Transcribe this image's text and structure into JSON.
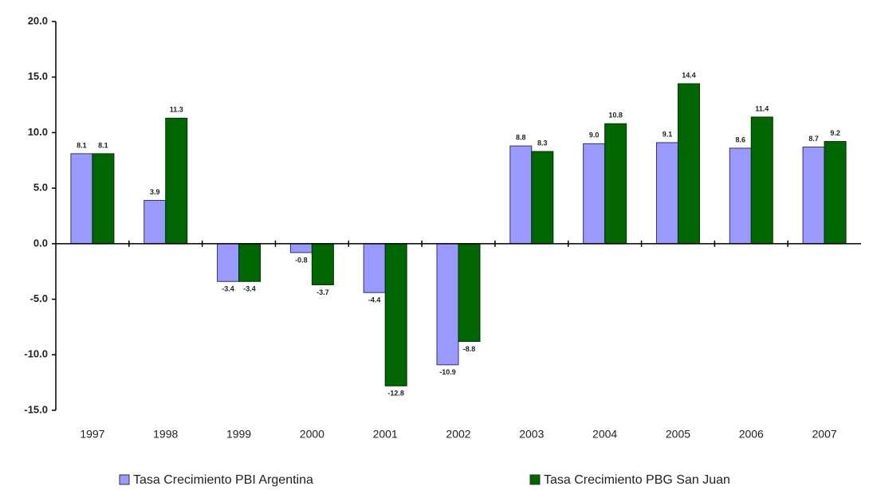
{
  "chart_data": {
    "type": "bar",
    "categories": [
      "1997",
      "1998",
      "1999",
      "2000",
      "2001",
      "2002",
      "2003",
      "2004",
      "2005",
      "2006",
      "2007"
    ],
    "series": [
      {
        "name": "Tasa Crecimiento PBI Argentina",
        "color": "#9999ff",
        "values": [
          8.1,
          3.9,
          -3.4,
          -0.8,
          -4.4,
          -10.9,
          8.8,
          9.0,
          9.1,
          8.6,
          8.7
        ],
        "value_labels": [
          "8.1",
          "3.9",
          "-3.4",
          "-0.8",
          "-4.4",
          "-10.9",
          "8.8",
          "9.0",
          "9.1",
          "8.6",
          "8.7"
        ]
      },
      {
        "name": "Tasa Crecimiento PBG San Juan",
        "color": "#006600",
        "values": [
          8.1,
          11.3,
          -3.4,
          -3.7,
          -12.8,
          -8.8,
          8.3,
          10.8,
          14.4,
          11.4,
          9.2
        ],
        "value_labels": [
          "8.1",
          "11.3",
          "-3.4",
          "-3.7",
          "-12.8",
          "-8.8",
          "8.3",
          "10.8",
          "14.4",
          "11.4",
          "9.2"
        ]
      }
    ],
    "ylim": [
      -15,
      20
    ],
    "yticks": [
      {
        "value": -15,
        "label": "-15.0"
      },
      {
        "value": -10,
        "label": "-10.0"
      },
      {
        "value": -5,
        "label": "-5.0"
      },
      {
        "value": 0,
        "label": "0.0"
      },
      {
        "value": 5,
        "label": "5.0"
      },
      {
        "value": 10,
        "label": "10.0"
      },
      {
        "value": 15,
        "label": "15.0"
      },
      {
        "value": 20,
        "label": "20.0"
      }
    ],
    "legend": "bottom"
  }
}
